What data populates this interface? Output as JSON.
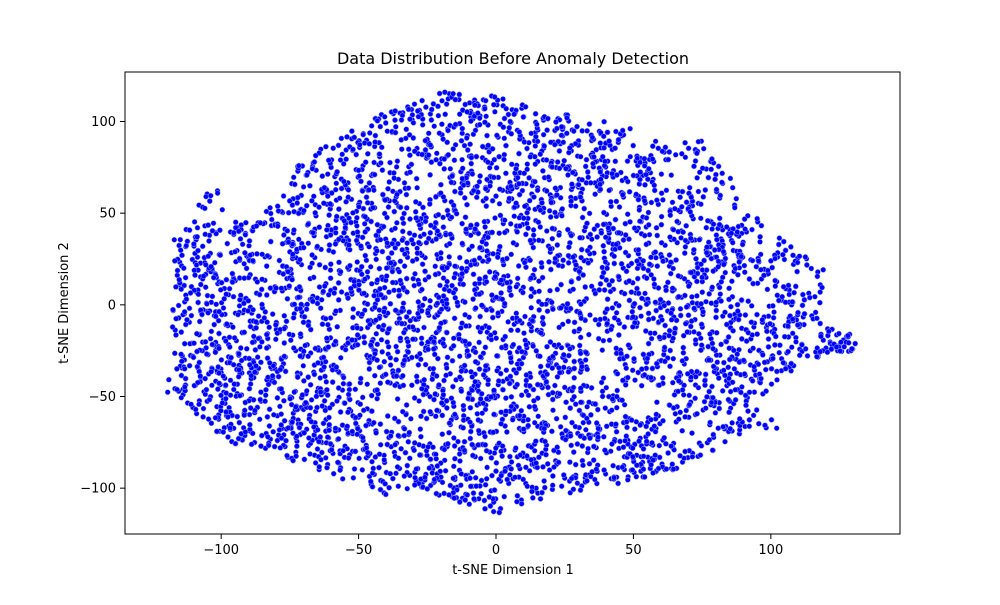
{
  "chart_data": {
    "type": "scatter",
    "title": "Data Distribution Before Anomaly Detection",
    "xlabel": "t-SNE Dimension 1",
    "ylabel": "t-SNE Dimension 2",
    "xlim": [
      -135,
      147
    ],
    "ylim": [
      -125,
      127
    ],
    "xticks": [
      -100,
      -50,
      0,
      50,
      100
    ],
    "yticks": [
      -100,
      -50,
      0,
      50,
      100
    ],
    "xtick_labels": [
      "−100",
      "−50",
      "0",
      "50",
      "100"
    ],
    "ytick_labels": [
      "−100",
      "−50",
      "0",
      "50",
      "100"
    ],
    "grid": false,
    "legend": false,
    "marker_color": "#0000ff",
    "marker_edge_color": "#9aa6ff",
    "series": [
      {
        "points_note": "dense cloud of several thousand points; representative region outline",
        "region": [
          [
            -122,
            -48
          ],
          [
            -118,
            -30
          ],
          [
            -118,
            -5
          ],
          [
            -117,
            10
          ],
          [
            -118,
            37
          ],
          [
            -110,
            45
          ],
          [
            -108,
            60
          ],
          [
            -102,
            64
          ],
          [
            -96,
            48
          ],
          [
            -90,
            46
          ],
          [
            -80,
            55
          ],
          [
            -75,
            70
          ],
          [
            -70,
            80
          ],
          [
            -62,
            90
          ],
          [
            -50,
            96
          ],
          [
            -42,
            104
          ],
          [
            -30,
            110
          ],
          [
            -20,
            116
          ],
          [
            -5,
            116
          ],
          [
            10,
            110
          ],
          [
            25,
            104
          ],
          [
            40,
            100
          ],
          [
            55,
            94
          ],
          [
            62,
            88
          ],
          [
            75,
            90
          ],
          [
            80,
            80
          ],
          [
            86,
            68
          ],
          [
            90,
            55
          ],
          [
            100,
            40
          ],
          [
            112,
            30
          ],
          [
            120,
            18
          ],
          [
            118,
            5
          ],
          [
            118,
            -12
          ],
          [
            128,
            -14
          ],
          [
            133,
            -24
          ],
          [
            120,
            -28
          ],
          [
            108,
            -36
          ],
          [
            100,
            -45
          ],
          [
            92,
            -55
          ],
          [
            104,
            -62
          ],
          [
            102,
            -70
          ],
          [
            90,
            -70
          ],
          [
            80,
            -80
          ],
          [
            70,
            -86
          ],
          [
            62,
            -92
          ],
          [
            50,
            -96
          ],
          [
            35,
            -102
          ],
          [
            20,
            -104
          ],
          [
            8,
            -110
          ],
          [
            0,
            -114
          ],
          [
            -10,
            -110
          ],
          [
            -25,
            -103
          ],
          [
            -40,
            -104
          ],
          [
            -55,
            -96
          ],
          [
            -70,
            -88
          ],
          [
            -82,
            -80
          ],
          [
            -95,
            -76
          ],
          [
            -105,
            -66
          ],
          [
            -112,
            -55
          ],
          [
            -120,
            -49
          ]
        ]
      }
    ]
  }
}
